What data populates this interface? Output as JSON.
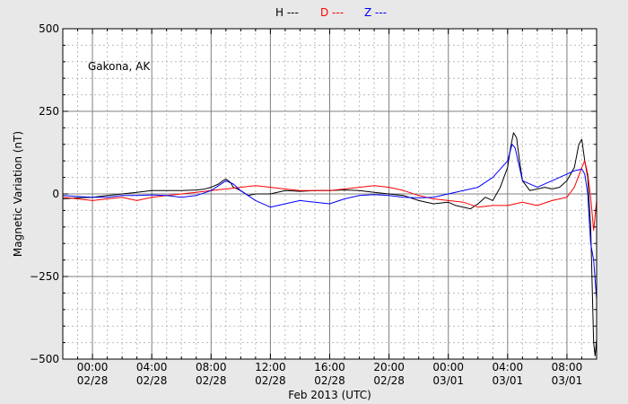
{
  "chart_data": {
    "type": "line",
    "title": "",
    "annotation": "Gakona, AK",
    "xlabel": "Feb 2013 (UTC)",
    "ylabel": "Magnetic Variation (nT)",
    "xlim_hours": [
      -2,
      34
    ],
    "ylim": [
      -500,
      500
    ],
    "yticks": [
      {
        "value": 500,
        "label": "500"
      },
      {
        "value": 250,
        "label": "250"
      },
      {
        "value": 0,
        "label": "0"
      },
      {
        "value": -250,
        "label": "−250"
      },
      {
        "value": -500,
        "label": "−500"
      }
    ],
    "xticks": [
      {
        "hour": 0,
        "time": "00:00",
        "date": "02/28"
      },
      {
        "hour": 4,
        "time": "04:00",
        "date": "02/28"
      },
      {
        "hour": 8,
        "time": "08:00",
        "date": "02/28"
      },
      {
        "hour": 12,
        "time": "12:00",
        "date": "02/28"
      },
      {
        "hour": 16,
        "time": "16:00",
        "date": "02/28"
      },
      {
        "hour": 20,
        "time": "20:00",
        "date": "02/28"
      },
      {
        "hour": 24,
        "time": "00:00",
        "date": "03/01"
      },
      {
        "hour": 28,
        "time": "04:00",
        "date": "03/01"
      },
      {
        "hour": 32,
        "time": "08:00",
        "date": "03/01"
      }
    ],
    "grid": true,
    "legend_placement": "top-center",
    "series": [
      {
        "name": "H ---",
        "color": "#000000",
        "points": [
          [
            -2,
            -15
          ],
          [
            -1,
            -12
          ],
          [
            0,
            -10
          ],
          [
            1,
            -5
          ],
          [
            2,
            0
          ],
          [
            3,
            5
          ],
          [
            4,
            10
          ],
          [
            5,
            10
          ],
          [
            6,
            10
          ],
          [
            7,
            12
          ],
          [
            7.5,
            14
          ],
          [
            8,
            20
          ],
          [
            8.5,
            30
          ],
          [
            8.8,
            40
          ],
          [
            9,
            45
          ],
          [
            9.3,
            35
          ],
          [
            9.5,
            20
          ],
          [
            10,
            10
          ],
          [
            10.5,
            -5
          ],
          [
            11,
            0
          ],
          [
            12,
            0
          ],
          [
            13,
            10
          ],
          [
            14,
            8
          ],
          [
            15,
            10
          ],
          [
            16,
            10
          ],
          [
            17,
            12
          ],
          [
            18,
            10
          ],
          [
            19,
            5
          ],
          [
            20,
            0
          ],
          [
            21,
            -5
          ],
          [
            22,
            -20
          ],
          [
            23,
            -30
          ],
          [
            24,
            -25
          ],
          [
            24.5,
            -35
          ],
          [
            25,
            -40
          ],
          [
            25.5,
            -45
          ],
          [
            26,
            -30
          ],
          [
            26.5,
            -10
          ],
          [
            27,
            -20
          ],
          [
            27.5,
            20
          ],
          [
            28,
            80
          ],
          [
            28.2,
            140
          ],
          [
            28.4,
            185
          ],
          [
            28.6,
            170
          ],
          [
            28.8,
            100
          ],
          [
            29,
            40
          ],
          [
            29.5,
            10
          ],
          [
            30,
            15
          ],
          [
            30.5,
            20
          ],
          [
            31,
            15
          ],
          [
            31.5,
            20
          ],
          [
            32,
            40
          ],
          [
            32.5,
            80
          ],
          [
            32.8,
            150
          ],
          [
            33,
            165
          ],
          [
            33.2,
            100
          ],
          [
            33.4,
            50
          ],
          [
            33.6,
            -100
          ],
          [
            33.8,
            -450
          ],
          [
            33.9,
            -490
          ],
          [
            34,
            -440
          ]
        ]
      },
      {
        "name": "D ---",
        "color": "#ff0000",
        "points": [
          [
            -2,
            -10
          ],
          [
            -1,
            -15
          ],
          [
            0,
            -20
          ],
          [
            1,
            -15
          ],
          [
            2,
            -10
          ],
          [
            3,
            -20
          ],
          [
            4,
            -10
          ],
          [
            5,
            -5
          ],
          [
            6,
            0
          ],
          [
            7,
            5
          ],
          [
            8,
            10
          ],
          [
            9,
            15
          ],
          [
            10,
            20
          ],
          [
            11,
            25
          ],
          [
            12,
            20
          ],
          [
            13,
            15
          ],
          [
            14,
            10
          ],
          [
            15,
            10
          ],
          [
            16,
            10
          ],
          [
            17,
            15
          ],
          [
            18,
            20
          ],
          [
            19,
            25
          ],
          [
            20,
            20
          ],
          [
            21,
            10
          ],
          [
            22,
            -5
          ],
          [
            23,
            -15
          ],
          [
            24,
            -20
          ],
          [
            25,
            -25
          ],
          [
            26,
            -40
          ],
          [
            27,
            -35
          ],
          [
            28,
            -35
          ],
          [
            29,
            -25
          ],
          [
            30,
            -35
          ],
          [
            31,
            -20
          ],
          [
            32,
            -10
          ],
          [
            32.5,
            20
          ],
          [
            33,
            80
          ],
          [
            33.2,
            100
          ],
          [
            33.4,
            60
          ],
          [
            33.6,
            -10
          ],
          [
            33.8,
            -110
          ],
          [
            34,
            -20
          ]
        ]
      },
      {
        "name": "Z ---",
        "color": "#0000ff",
        "points": [
          [
            -2,
            -5
          ],
          [
            -1,
            -8
          ],
          [
            0,
            -10
          ],
          [
            1,
            -10
          ],
          [
            2,
            -5
          ],
          [
            3,
            -5
          ],
          [
            4,
            -3
          ],
          [
            5,
            -5
          ],
          [
            6,
            -10
          ],
          [
            7,
            -5
          ],
          [
            8,
            10
          ],
          [
            8.5,
            25
          ],
          [
            9,
            40
          ],
          [
            9.5,
            30
          ],
          [
            10,
            10
          ],
          [
            11,
            -20
          ],
          [
            12,
            -40
          ],
          [
            13,
            -30
          ],
          [
            14,
            -20
          ],
          [
            15,
            -25
          ],
          [
            16,
            -30
          ],
          [
            17,
            -15
          ],
          [
            18,
            -5
          ],
          [
            19,
            -2
          ],
          [
            20,
            -5
          ],
          [
            21,
            -10
          ],
          [
            22,
            -12
          ],
          [
            23,
            -10
          ],
          [
            24,
            0
          ],
          [
            25,
            10
          ],
          [
            26,
            20
          ],
          [
            27,
            50
          ],
          [
            28,
            100
          ],
          [
            28.3,
            150
          ],
          [
            28.5,
            140
          ],
          [
            28.8,
            80
          ],
          [
            29,
            40
          ],
          [
            30,
            20
          ],
          [
            31,
            40
          ],
          [
            32,
            60
          ],
          [
            32.5,
            70
          ],
          [
            33,
            75
          ],
          [
            33.2,
            60
          ],
          [
            33.4,
            0
          ],
          [
            33.6,
            -150
          ],
          [
            33.8,
            -200
          ],
          [
            34,
            -320
          ]
        ]
      }
    ]
  }
}
